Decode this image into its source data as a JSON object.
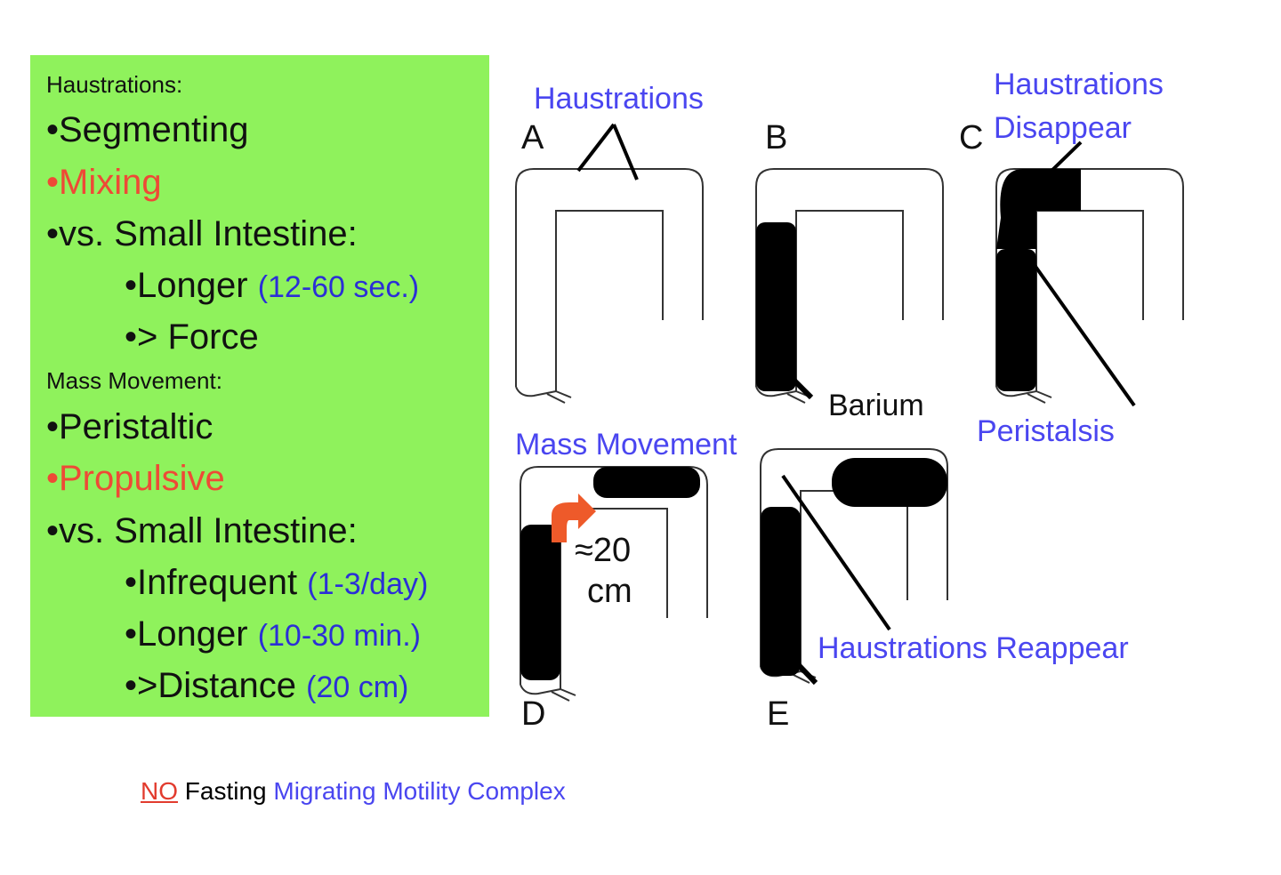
{
  "left_panel": {
    "background": "#8ff25c",
    "haustrations_heading": "Haustrations:",
    "h_items": [
      {
        "text": "•Segmenting"
      },
      {
        "text": "•Mixing",
        "color": "#ee4a36"
      },
      {
        "text": "•vs. Small Intestine:"
      },
      {
        "text": "•Longer",
        "note": "(12-60 sec.)"
      },
      {
        "text": "•> Force"
      }
    ],
    "mass_heading": "Mass Movement:",
    "m_items": [
      {
        "text": "•Peristaltic"
      },
      {
        "text": "•Propulsive",
        "color": "#ee4a36"
      },
      {
        "text": "•vs. Small Intestine:"
      },
      {
        "text": "•Infrequent",
        "note": "(1-3/day)"
      },
      {
        "text": "•Longer",
        "note": "(10-30 min.)"
      },
      {
        "text": "•>Distance",
        "note": "(20 cm)"
      }
    ]
  },
  "diagram": {
    "panel_letters": [
      "A",
      "B",
      "C",
      "D",
      "E"
    ],
    "labels": {
      "haustrations": "Haustrations",
      "haustrations_disappear_1": "Haustrations",
      "haustrations_disappear_2": "Disappear",
      "barium": "Barium",
      "peristalsis": "Peristalsis",
      "mass_movement": "Mass Movement",
      "distance_1": "≈20",
      "distance_2": "cm",
      "haustrations_reappear": "Haustrations Reappear"
    },
    "label_color": "#4a46f0",
    "arrow_color": "#ee5a2a"
  },
  "footer": {
    "no": "NO",
    "fasting": "Fasting",
    "mmc": "Migrating Motility Complex"
  }
}
